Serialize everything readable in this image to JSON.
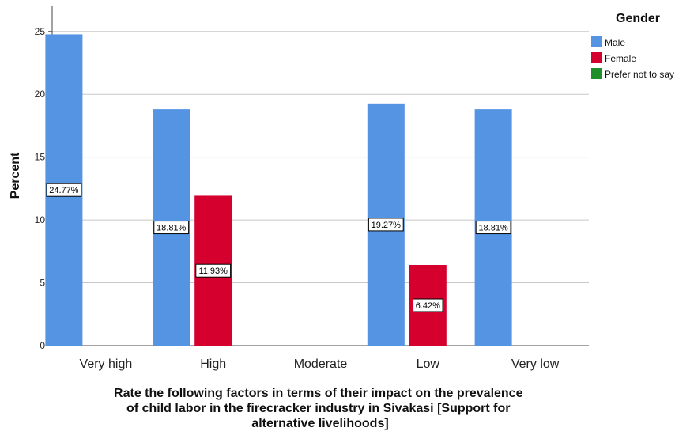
{
  "chart_data": {
    "type": "bar",
    "categories": [
      "Very high",
      "High",
      "Moderate",
      "Low",
      "Very low"
    ],
    "series": [
      {
        "name": "Male",
        "color": "#5593e3",
        "values": [
          24.77,
          18.81,
          0,
          19.27,
          18.81
        ],
        "labels": [
          "24.77%",
          "18.81%",
          "",
          "19.27%",
          "18.81%"
        ]
      },
      {
        "name": "Female",
        "color": "#d6002f",
        "values": [
          0,
          11.93,
          0,
          6.42,
          0
        ],
        "labels": [
          "",
          "11.93%",
          "",
          "6.42%",
          ""
        ]
      },
      {
        "name": "Prefer not to say",
        "color": "#1f8f2b",
        "values": [
          0,
          0,
          0,
          0,
          0
        ],
        "labels": [
          "",
          "",
          "",
          "",
          ""
        ]
      }
    ],
    "yticks": [
      0,
      5,
      10,
      15,
      20,
      25
    ],
    "ylim": [
      0,
      27
    ],
    "ylabel": "Percent",
    "xlabel_lines": [
      "Rate the following factors in terms of their impact on the prevalence",
      "of child labor in the firecracker industry in Sivakasi [Support for",
      "alternative livelihoods]"
    ],
    "legend_title": "Gender",
    "legend_position": "right",
    "grid": true
  }
}
